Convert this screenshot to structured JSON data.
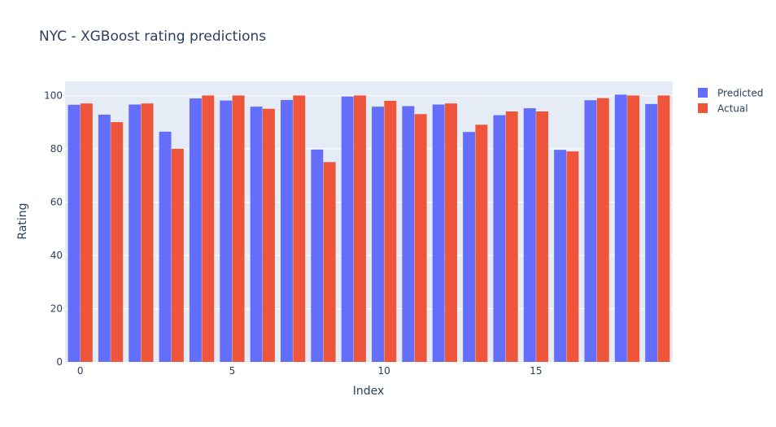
{
  "chart_data": {
    "type": "bar",
    "title": "NYC - XGBoost rating predictions",
    "xlabel": "Index",
    "ylabel": "Rating",
    "x": [
      0,
      1,
      2,
      3,
      4,
      5,
      6,
      7,
      8,
      9,
      10,
      11,
      12,
      13,
      14,
      15,
      16,
      17,
      18,
      19
    ],
    "xticks": [
      0,
      5,
      10,
      15
    ],
    "yticks": [
      0,
      20,
      40,
      60,
      80,
      100
    ],
    "ylim": [
      0,
      105.3
    ],
    "grid": true,
    "legend_position": "top-right",
    "series": [
      {
        "name": "Predicted",
        "color": "#636efa",
        "values": [
          96.5,
          92.8,
          96.6,
          86.4,
          98.9,
          98.1,
          95.8,
          98.3,
          79.7,
          99.6,
          95.8,
          96.0,
          96.6,
          86.3,
          92.6,
          95.2,
          79.6,
          98.2,
          100.3,
          96.8
        ]
      },
      {
        "name": "Actual",
        "color": "#ef553b",
        "values": [
          97,
          90,
          97,
          80,
          100,
          100,
          95,
          100,
          75,
          100,
          98,
          93,
          97,
          89,
          94,
          94,
          79,
          99,
          100,
          100
        ]
      }
    ],
    "colors": {
      "plot_bg": "#e5ecf6",
      "grid": "#ffffff",
      "text": "#2a3f5f"
    }
  }
}
